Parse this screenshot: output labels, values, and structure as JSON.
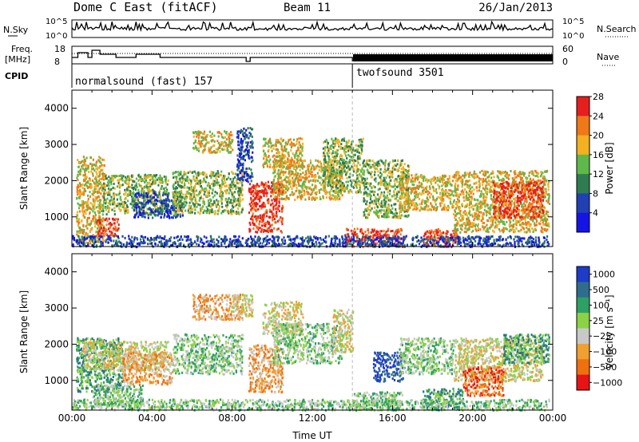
{
  "header": {
    "title": "Dome C East (fitACF)",
    "beam": "Beam 11",
    "date": "26/Jan/2013"
  },
  "noise_panel": {
    "left_label": "N.Sky",
    "right_label": "N.Search",
    "left_ticks": [
      "10^5",
      "10^0"
    ],
    "right_ticks": [
      "10^5",
      "10^0"
    ]
  },
  "freq_panel": {
    "left_label_line1": "Freq.",
    "left_label_line2": "[MHz]",
    "right_label": "Nave",
    "left_ticks": [
      "18",
      "8"
    ],
    "right_ticks": [
      "60",
      "0"
    ]
  },
  "cpid_panel": {
    "label": "CPID",
    "modes": [
      {
        "name": "normalsound (fast) 157",
        "start_hour": 0,
        "end_hour": 14
      },
      {
        "name": "twofsound 3501",
        "start_hour": 14,
        "end_hour": 24
      }
    ]
  },
  "chart_data": [
    {
      "type": "heatmap",
      "title": "",
      "xlabel": "",
      "ylabel": "Slant Range [km]",
      "xlim": [
        0,
        24
      ],
      "ylim": [
        180,
        4500
      ],
      "yticks": [
        "1000",
        "2000",
        "3000",
        "4000"
      ],
      "colorbar": {
        "label": "Power [dB]",
        "tick_values": [
          "4",
          "8",
          "12",
          "16",
          "20",
          "24",
          "28"
        ],
        "colors": [
          "#1414e6",
          "#2040b4",
          "#2e7c50",
          "#5fb84a",
          "#f2b022",
          "#f07818",
          "#e61e1e"
        ]
      },
      "features": [
        {
          "t0": 0.2,
          "t1": 1.6,
          "r0": 300,
          "r1": 2700,
          "level": 4
        },
        {
          "t0": 1.2,
          "t1": 2.3,
          "r0": 500,
          "r1": 1000,
          "level": 6
        },
        {
          "t0": 1.5,
          "t1": 4.8,
          "r0": 1100,
          "r1": 2200,
          "level": 3
        },
        {
          "t0": 3.0,
          "t1": 5.5,
          "r0": 1000,
          "r1": 1700,
          "level": 1
        },
        {
          "t0": 5.0,
          "t1": 8.5,
          "r0": 1100,
          "r1": 2300,
          "level": 3
        },
        {
          "t0": 6.0,
          "t1": 8.0,
          "r0": 2800,
          "r1": 3400,
          "level": 4
        },
        {
          "t0": 8.2,
          "t1": 9.0,
          "r0": 2000,
          "r1": 3500,
          "level": 1
        },
        {
          "t0": 8.8,
          "t1": 10.5,
          "r0": 600,
          "r1": 2000,
          "level": 6
        },
        {
          "t0": 9.5,
          "t1": 11.5,
          "r0": 2400,
          "r1": 3200,
          "level": 4
        },
        {
          "t0": 10.0,
          "t1": 13.5,
          "r0": 1500,
          "r1": 2600,
          "level": 4
        },
        {
          "t0": 12.5,
          "t1": 14.5,
          "r0": 1700,
          "r1": 3200,
          "level": 3
        },
        {
          "t0": 13.6,
          "t1": 16.5,
          "r0": 200,
          "r1": 700,
          "level": 6
        },
        {
          "t0": 14.5,
          "t1": 16.8,
          "r0": 1000,
          "r1": 2600,
          "level": 3
        },
        {
          "t0": 16.3,
          "t1": 19.0,
          "r0": 1200,
          "r1": 2200,
          "level": 4
        },
        {
          "t0": 17.5,
          "t1": 19.2,
          "r0": 200,
          "r1": 700,
          "level": 6
        },
        {
          "t0": 19.0,
          "t1": 23.8,
          "r0": 600,
          "r1": 2300,
          "level": 4
        },
        {
          "t0": 21.0,
          "t1": 23.5,
          "r0": 1000,
          "r1": 2000,
          "level": 6
        },
        {
          "t0": 0.0,
          "t1": 23.8,
          "r0": 200,
          "r1": 500,
          "level": 1
        }
      ]
    },
    {
      "type": "heatmap",
      "title": "",
      "xlabel": "Time UT",
      "ylabel": "Slant Range [km]",
      "xlim": [
        0,
        24
      ],
      "ylim": [
        180,
        4500
      ],
      "xticks": [
        "00:00",
        "04:00",
        "08:00",
        "12:00",
        "16:00",
        "20:00",
        "00:00"
      ],
      "yticks": [
        "1000",
        "2000",
        "3000",
        "4000"
      ],
      "colorbar": {
        "label": "Velocity [m s⁻¹]",
        "tick_values": [
          "1000",
          "500",
          "100",
          "25",
          "−25",
          "−100",
          "−500",
          "−1000"
        ],
        "colors": [
          "#1e3cc8",
          "#2e6e8c",
          "#2ea064",
          "#8cd246",
          "#c8c8c8",
          "#f0a030",
          "#f07010",
          "#e61414"
        ]
      },
      "features": [
        {
          "t0": 0.2,
          "t1": 2.5,
          "r0": 700,
          "r1": 2200,
          "level": 2
        },
        {
          "t0": 0.5,
          "t1": 4.8,
          "r0": 1300,
          "r1": 2100,
          "level": 4
        },
        {
          "t0": 1.0,
          "t1": 3.5,
          "r0": 300,
          "r1": 900,
          "level": 3
        },
        {
          "t0": 2.5,
          "t1": 5.0,
          "r0": 900,
          "r1": 1800,
          "level": 5
        },
        {
          "t0": 5.0,
          "t1": 8.5,
          "r0": 1200,
          "r1": 2300,
          "level": 3
        },
        {
          "t0": 6.0,
          "t1": 8.5,
          "r0": 2700,
          "r1": 3400,
          "level": 5
        },
        {
          "t0": 8.0,
          "t1": 9.0,
          "r0": 2800,
          "r1": 3400,
          "level": 4
        },
        {
          "t0": 8.8,
          "t1": 10.5,
          "r0": 700,
          "r1": 2000,
          "level": 5
        },
        {
          "t0": 9.5,
          "t1": 11.5,
          "r0": 2300,
          "r1": 3200,
          "level": 4
        },
        {
          "t0": 10.0,
          "t1": 13.5,
          "r0": 1500,
          "r1": 2600,
          "level": 3
        },
        {
          "t0": 13.0,
          "t1": 14.0,
          "r0": 1800,
          "r1": 3000,
          "level": 4
        },
        {
          "t0": 14.0,
          "t1": 16.5,
          "r0": 200,
          "r1": 700,
          "level": 3
        },
        {
          "t0": 15.0,
          "t1": 16.5,
          "r0": 1000,
          "r1": 1800,
          "level": 0
        },
        {
          "t0": 16.3,
          "t1": 19.0,
          "r0": 1200,
          "r1": 2200,
          "level": 3
        },
        {
          "t0": 17.5,
          "t1": 19.5,
          "r0": 200,
          "r1": 800,
          "level": 2
        },
        {
          "t0": 19.0,
          "t1": 23.5,
          "r0": 1000,
          "r1": 2200,
          "level": 4
        },
        {
          "t0": 19.5,
          "t1": 21.5,
          "r0": 600,
          "r1": 1400,
          "level": 6
        },
        {
          "t0": 21.5,
          "t1": 23.8,
          "r0": 1500,
          "r1": 2300,
          "level": 2
        },
        {
          "t0": 0.0,
          "t1": 23.8,
          "r0": 200,
          "r1": 500,
          "level": 3
        }
      ]
    }
  ]
}
